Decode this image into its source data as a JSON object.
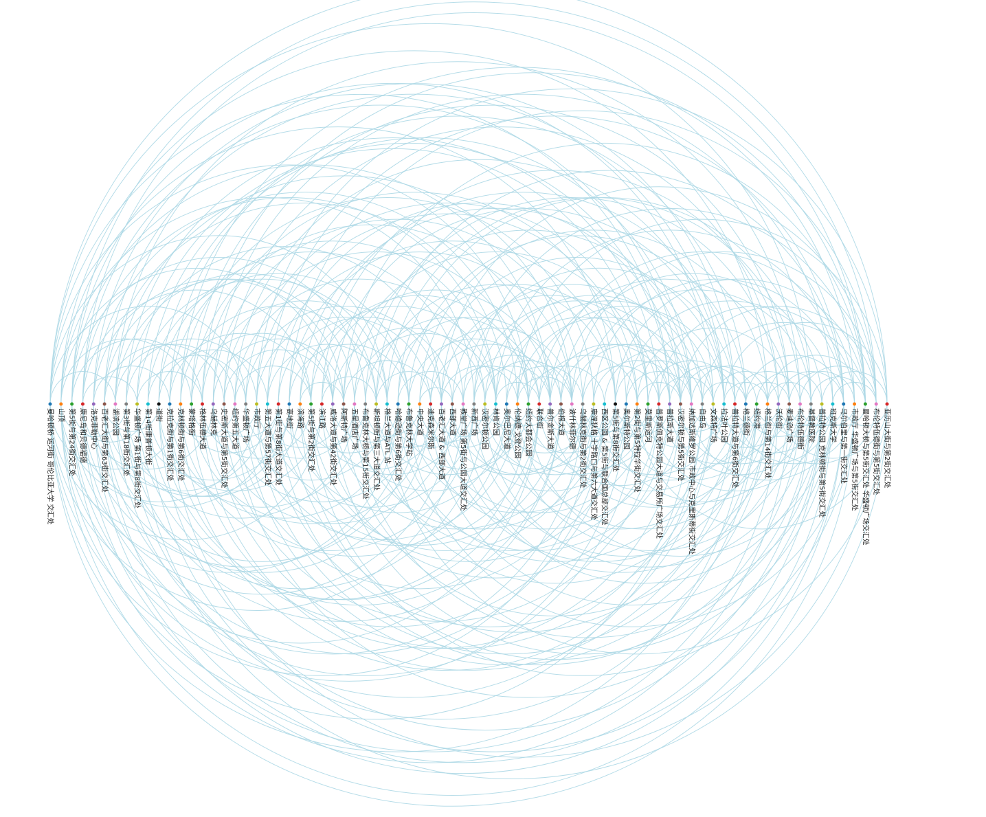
{
  "nodes": [
    {
      "name": "曼哈顿桥 运河街 哥伦比亚大学 交汇处",
      "color": "#1f77b4"
    },
    {
      "name": "山顶",
      "color": "#ff7f0e"
    },
    {
      "name": "第5街与第24街交汇处",
      "color": "#2ca02c"
    },
    {
      "name": "康尼岛和贝德福德",
      "color": "#d62728"
    },
    {
      "name": "洛克菲勒中心",
      "color": "#9467bd"
    },
    {
      "name": "百老汇大街与第63街交汇处",
      "color": "#8c564b"
    },
    {
      "name": "湖滨公园",
      "color": "#e377c2"
    },
    {
      "name": "第3街与第18街交汇处",
      "color": "#7f7f7f"
    },
    {
      "name": "华盛顿广场 第1街与第8街交汇处",
      "color": "#bcbd22"
    },
    {
      "name": "第14街康普顿大街",
      "color": "#17becf"
    },
    {
      "name": "道街",
      "color": "#111111"
    },
    {
      "name": "克拉克街与第1街交汇处",
      "color": "#1f77b4"
    },
    {
      "name": "克林顿街与第6街交汇处",
      "color": "#ff7f0e"
    },
    {
      "name": "蒙塔格街",
      "color": "#2ca02c"
    },
    {
      "name": "格林伍德大道",
      "color": "#d62728"
    },
    {
      "name": "乌赫林克",
      "color": "#9467bd"
    },
    {
      "name": "史密斯大道与第5街交汇处",
      "color": "#8c564b"
    },
    {
      "name": "纽约第五大道",
      "color": "#e377c2"
    },
    {
      "name": "华盛顿广场",
      "color": "#7f7f7f"
    },
    {
      "name": "市政厅",
      "color": "#bcbd22"
    },
    {
      "name": "第五大道与第57街交汇处",
      "color": "#17becf"
    },
    {
      "name": "第1街与第8街大道交汇处",
      "color": "#d62728"
    },
    {
      "name": "高地街",
      "color": "#1f77b4"
    },
    {
      "name": "滨海路",
      "color": "#ff7f0e"
    },
    {
      "name": "第5街与第2街交汇处",
      "color": "#2ca02c"
    },
    {
      "name": "滨江路",
      "color": "#d62728"
    },
    {
      "name": "威洛大道与第42街交汇处",
      "color": "#9467bd"
    },
    {
      "name": "阿斯特广场",
      "color": "#8c564b"
    },
    {
      "name": "五星酒店广场",
      "color": "#e377c2"
    },
    {
      "name": "布鲁克林大桥与第15街交汇处",
      "color": "#7f7f7f"
    },
    {
      "name": "斯坦顿街与第三大道交汇处",
      "color": "#bcbd22"
    },
    {
      "name": "格兰大道与ATL 站",
      "color": "#17becf"
    },
    {
      "name": "哈德逊街与第6街交汇处",
      "color": "#1f77b4"
    },
    {
      "name": "布鲁克林大学站",
      "color": "#2ca02c"
    },
    {
      "name": "中央大道",
      "color": "#ff7f0e"
    },
    {
      "name": "迪克森米尔斯",
      "color": "#d62728"
    },
    {
      "name": "百老汇大道 & 西部大道",
      "color": "#9467bd"
    },
    {
      "name": "西部大道",
      "color": "#8c564b"
    },
    {
      "name": "教堂广场 第5街与公园大道交汇处",
      "color": "#e377c2"
    },
    {
      "name": "新西广场",
      "color": "#7f7f7f"
    },
    {
      "name": "汉密尔顿公园",
      "color": "#bcbd22"
    },
    {
      "name": "林肯公园",
      "color": "#17becf"
    },
    {
      "name": "奥尔巴尼大道",
      "color": "#1f77b4"
    },
    {
      "name": "伦纳德·戈登公园",
      "color": "#ff7f0e"
    },
    {
      "name": "纽约大都会公园",
      "color": "#2ca02c"
    },
    {
      "name": "联合街",
      "color": "#d62728"
    },
    {
      "name": "普尔金斯大道",
      "color": "#9467bd"
    },
    {
      "name": "伯根大道",
      "color": "#8c564b"
    },
    {
      "name": "波什林菲尔德",
      "color": "#e377c2"
    },
    {
      "name": "乌赫林克街与第2街交汇处",
      "color": "#7f7f7f"
    },
    {
      "name": "康涅狄格 十字路口与第六大道交汇处",
      "color": "#bcbd22"
    },
    {
      "name": "西区公园 & 第5街与联合国总部交汇处",
      "color": "#17becf"
    },
    {
      "name": "第5街与第8街交汇处",
      "color": "#111111"
    },
    {
      "name": "奥尔斯特公园",
      "color": "#1f77b4"
    },
    {
      "name": "第2街与第5特拉华街交汇处",
      "color": "#ff7f0e"
    },
    {
      "name": "莫里斯运河",
      "color": "#2ca02c"
    },
    {
      "name": "普罗斯佩克特公园大道与交易所广场交汇处",
      "color": "#d62728"
    },
    {
      "name": "普拉斯大道",
      "color": "#9467bd"
    },
    {
      "name": "汉密尔顿与第5街交汇处",
      "color": "#8c564b"
    },
    {
      "name": "纳加达斯维罗公园 市政中心与克里斯蒂街交汇处",
      "color": "#e377c2"
    },
    {
      "name": "自由岛",
      "color": "#7f7f7f"
    },
    {
      "name": "文森特广场",
      "color": "#bcbd22"
    },
    {
      "name": "拉法叶公园",
      "color": "#17becf"
    },
    {
      "name": "普拉特大道与第6街交汇处",
      "color": "#d62728"
    },
    {
      "name": "格兰德街",
      "color": "#1f77b4"
    },
    {
      "name": "纽约港",
      "color": "#2ca02c"
    },
    {
      "name": "格兰街与第14街交汇处",
      "color": "#ff7f0e"
    },
    {
      "name": "沃伦街",
      "color": "#9467bd"
    },
    {
      "name": "麦迪逊广场",
      "color": "#8c564b"
    },
    {
      "name": "布伦特伍德街",
      "color": "#e377c2"
    },
    {
      "name": "基督教医院",
      "color": "#7f7f7f"
    },
    {
      "name": "普拉特公园 克林顿街与第5街交汇处",
      "color": "#bcbd22"
    },
    {
      "name": "班克斯大学",
      "color": "#17becf"
    },
    {
      "name": "马尔伯里与第一街交汇处",
      "color": "#1f77b4"
    },
    {
      "name": "市政厅 华盛顿广场与第5街交汇处",
      "color": "#ff7f0e"
    },
    {
      "name": "曼哈顿大桥与第5街交汇处 华盛顿广场交汇处",
      "color": "#2ca02c"
    },
    {
      "name": "布伦特伍德街与第5街交汇处",
      "color": "#e377c2"
    },
    {
      "name": "亚历山大街与第2街交汇处",
      "color": "#d62728"
    }
  ],
  "links": [
    [
      0,
      77
    ],
    [
      0,
      74
    ],
    [
      0,
      70
    ],
    [
      0,
      64
    ],
    [
      0,
      57
    ],
    [
      0,
      50
    ],
    [
      0,
      44
    ],
    [
      0,
      38
    ],
    [
      0,
      31
    ],
    [
      0,
      25
    ],
    [
      0,
      18
    ],
    [
      0,
      12
    ],
    [
      0,
      6
    ],
    [
      1,
      73
    ],
    [
      1,
      66
    ],
    [
      1,
      59
    ],
    [
      1,
      52
    ],
    [
      1,
      45
    ],
    [
      1,
      39
    ],
    [
      1,
      32
    ],
    [
      1,
      26
    ],
    [
      1,
      19
    ],
    [
      1,
      13
    ],
    [
      1,
      7
    ],
    [
      2,
      76
    ],
    [
      2,
      68
    ],
    [
      2,
      61
    ],
    [
      2,
      53
    ],
    [
      2,
      46
    ],
    [
      2,
      37
    ],
    [
      2,
      29
    ],
    [
      2,
      21
    ],
    [
      2,
      14
    ],
    [
      2,
      9
    ],
    [
      3,
      75
    ],
    [
      3,
      67
    ],
    [
      3,
      58
    ],
    [
      3,
      49
    ],
    [
      3,
      41
    ],
    [
      3,
      33
    ],
    [
      3,
      24
    ],
    [
      3,
      15
    ],
    [
      3,
      8
    ],
    [
      4,
      72
    ],
    [
      4,
      63
    ],
    [
      4,
      54
    ],
    [
      4,
      43
    ],
    [
      4,
      35
    ],
    [
      4,
      27
    ],
    [
      4,
      20
    ],
    [
      4,
      11
    ],
    [
      5,
      71
    ],
    [
      5,
      62
    ],
    [
      5,
      51
    ],
    [
      5,
      42
    ],
    [
      5,
      34
    ],
    [
      5,
      28
    ],
    [
      5,
      22
    ],
    [
      5,
      16
    ],
    [
      5,
      10
    ],
    [
      6,
      69
    ],
    [
      6,
      60
    ],
    [
      6,
      48
    ],
    [
      6,
      40
    ],
    [
      6,
      30
    ],
    [
      6,
      23
    ],
    [
      6,
      17
    ],
    [
      7,
      65
    ],
    [
      7,
      56
    ],
    [
      7,
      47
    ],
    [
      7,
      36
    ],
    [
      7,
      28
    ],
    [
      7,
      19
    ],
    [
      8,
      77
    ],
    [
      8,
      55
    ],
    [
      8,
      44
    ],
    [
      8,
      31
    ],
    [
      8,
      22
    ],
    [
      8,
      14
    ],
    [
      9,
      73
    ],
    [
      9,
      57
    ],
    [
      9,
      45
    ],
    [
      9,
      33
    ],
    [
      9,
      25
    ],
    [
      9,
      18
    ],
    [
      10,
      70
    ],
    [
      10,
      59
    ],
    [
      10,
      47
    ],
    [
      10,
      38
    ],
    [
      10,
      29
    ],
    [
      10,
      20
    ],
    [
      11,
      76
    ],
    [
      11,
      64
    ],
    [
      11,
      52
    ],
    [
      11,
      41
    ],
    [
      11,
      32
    ],
    [
      11,
      24
    ],
    [
      11,
      17
    ],
    [
      12,
      74
    ],
    [
      12,
      61
    ],
    [
      12,
      50
    ],
    [
      12,
      39
    ],
    [
      12,
      30
    ],
    [
      12,
      21
    ],
    [
      13,
      68
    ],
    [
      13,
      58
    ],
    [
      13,
      46
    ],
    [
      13,
      35
    ],
    [
      13,
      26
    ],
    [
      13,
      19
    ],
    [
      14,
      75
    ],
    [
      14,
      63
    ],
    [
      14,
      53
    ],
    [
      14,
      42
    ],
    [
      14,
      33
    ],
    [
      14,
      24
    ],
    [
      15,
      72
    ],
    [
      15,
      60
    ],
    [
      15,
      49
    ],
    [
      15,
      37
    ],
    [
      15,
      27
    ],
    [
      15,
      21
    ],
    [
      16,
      67
    ],
    [
      16,
      56
    ],
    [
      16,
      44
    ],
    [
      16,
      34
    ],
    [
      16,
      26
    ],
    [
      17,
      71
    ],
    [
      17,
      62
    ],
    [
      17,
      51
    ],
    [
      17,
      40
    ],
    [
      17,
      31
    ],
    [
      17,
      24
    ],
    [
      18,
      66
    ],
    [
      18,
      55
    ],
    [
      18,
      43
    ],
    [
      18,
      36
    ],
    [
      18,
      28
    ],
    [
      19,
      77
    ],
    [
      19,
      65
    ],
    [
      19,
      54
    ],
    [
      19,
      45
    ],
    [
      19,
      35
    ],
    [
      19,
      27
    ],
    [
      20,
      73
    ],
    [
      20,
      61
    ],
    [
      20,
      48
    ],
    [
      20,
      39
    ],
    [
      20,
      31
    ],
    [
      21,
      69
    ],
    [
      21,
      58
    ],
    [
      21,
      47
    ],
    [
      21,
      37
    ],
    [
      21,
      29
    ],
    [
      22,
      76
    ],
    [
      22,
      64
    ],
    [
      22,
      52
    ],
    [
      22,
      42
    ],
    [
      22,
      33
    ],
    [
      23,
      70
    ],
    [
      23,
      59
    ],
    [
      23,
      50
    ],
    [
      23,
      41
    ],
    [
      23,
      32
    ],
    [
      23,
      27
    ],
    [
      24,
      74
    ],
    [
      24,
      63
    ],
    [
      24,
      53
    ],
    [
      24,
      44
    ],
    [
      24,
      36
    ],
    [
      25,
      68
    ],
    [
      25,
      57
    ],
    [
      25,
      46
    ],
    [
      25,
      38
    ],
    [
      25,
      30
    ],
    [
      26,
      72
    ],
    [
      26,
      62
    ],
    [
      26,
      49
    ],
    [
      26,
      40
    ],
    [
      26,
      33
    ],
    [
      27,
      75
    ],
    [
      27,
      66
    ],
    [
      27,
      55
    ],
    [
      27,
      43
    ],
    [
      27,
      35
    ],
    [
      28,
      71
    ],
    [
      28,
      60
    ],
    [
      28,
      51
    ],
    [
      28,
      41
    ],
    [
      28,
      34
    ],
    [
      29,
      67
    ],
    [
      29,
      56
    ],
    [
      29,
      45
    ],
    [
      29,
      37
    ],
    [
      30,
      73
    ],
    [
      30,
      63
    ],
    [
      30,
      52
    ],
    [
      30,
      43
    ],
    [
      30,
      36
    ],
    [
      31,
      77
    ],
    [
      31,
      69
    ],
    [
      31,
      58
    ],
    [
      31,
      47
    ],
    [
      31,
      39
    ],
    [
      32,
      70
    ],
    [
      32,
      61
    ],
    [
      32,
      54
    ],
    [
      32,
      44
    ],
    [
      32,
      38
    ],
    [
      33,
      74
    ],
    [
      33,
      64
    ],
    [
      33,
      53
    ],
    [
      33,
      45
    ],
    [
      33,
      40
    ],
    [
      34,
      66
    ],
    [
      34,
      57
    ],
    [
      34,
      48
    ],
    [
      34,
      42
    ],
    [
      34,
      37
    ],
    [
      35,
      72
    ],
    [
      35,
      62
    ],
    [
      35,
      55
    ],
    [
      35,
      46
    ],
    [
      35,
      41
    ],
    [
      36,
      76
    ],
    [
      36,
      65
    ],
    [
      36,
      56
    ],
    [
      36,
      49
    ],
    [
      36,
      43
    ],
    [
      37,
      68
    ],
    [
      37,
      59
    ],
    [
      37,
      50
    ],
    [
      37,
      44
    ],
    [
      38,
      71
    ],
    [
      38,
      63
    ],
    [
      38,
      54
    ],
    [
      38,
      47
    ],
    [
      38,
      41
    ],
    [
      39,
      75
    ],
    [
      39,
      67
    ],
    [
      39,
      58
    ],
    [
      39,
      51
    ],
    [
      39,
      46
    ],
    [
      40,
      70
    ],
    [
      40,
      60
    ],
    [
      40,
      53
    ],
    [
      40,
      48
    ],
    [
      40,
      44
    ],
    [
      41,
      73
    ],
    [
      41,
      64
    ],
    [
      41,
      57
    ],
    [
      41,
      50
    ],
    [
      41,
      45
    ],
    [
      42,
      69
    ],
    [
      42,
      61
    ],
    [
      42,
      55
    ],
    [
      42,
      49
    ],
    [
      42,
      46
    ],
    [
      43,
      77
    ],
    [
      43,
      66
    ],
    [
      43,
      59
    ],
    [
      43,
      52
    ],
    [
      43,
      48
    ],
    [
      44,
      72
    ],
    [
      44,
      62
    ],
    [
      44,
      56
    ],
    [
      44,
      51
    ],
    [
      44,
      47
    ],
    [
      45,
      68
    ],
    [
      45,
      60
    ],
    [
      45,
      54
    ],
    [
      45,
      50
    ],
    [
      46,
      74
    ],
    [
      46,
      65
    ],
    [
      46,
      57
    ],
    [
      46,
      52
    ],
    [
      47,
      71
    ],
    [
      47,
      63
    ],
    [
      47,
      58
    ],
    [
      47,
      53
    ],
    [
      48,
      76
    ],
    [
      48,
      67
    ],
    [
      48,
      59
    ],
    [
      48,
      55
    ],
    [
      49,
      70
    ],
    [
      49,
      62
    ],
    [
      49,
      56
    ],
    [
      49,
      54
    ],
    [
      50,
      73
    ],
    [
      50,
      64
    ],
    [
      50,
      58
    ],
    [
      51,
      69
    ],
    [
      51,
      61
    ],
    [
      51,
      57
    ],
    [
      52,
      75
    ],
    [
      52,
      66
    ],
    [
      52,
      60
    ],
    [
      52,
      56
    ],
    [
      53,
      72
    ],
    [
      53,
      65
    ],
    [
      53,
      59
    ],
    [
      54,
      77
    ],
    [
      54,
      68
    ],
    [
      54,
      62
    ],
    [
      54,
      58
    ],
    [
      55,
      71
    ],
    [
      55,
      63
    ],
    [
      55,
      60
    ],
    [
      56,
      74
    ],
    [
      56,
      67
    ],
    [
      56,
      61
    ],
    [
      57,
      70
    ],
    [
      57,
      64
    ],
    [
      57,
      62
    ],
    [
      58,
      76
    ],
    [
      58,
      69
    ],
    [
      58,
      65
    ],
    [
      59,
      73
    ],
    [
      59,
      66
    ],
    [
      59,
      63
    ],
    [
      60,
      75
    ],
    [
      60,
      68
    ],
    [
      60,
      64
    ],
    [
      61,
      72
    ],
    [
      61,
      67
    ],
    [
      61,
      65
    ],
    [
      62,
      77
    ],
    [
      62,
      71
    ],
    [
      62,
      66
    ],
    [
      63,
      74
    ],
    [
      63,
      69
    ],
    [
      63,
      67
    ],
    [
      64,
      73
    ],
    [
      64,
      70
    ],
    [
      64,
      68
    ],
    [
      65,
      76
    ],
    [
      65,
      71
    ],
    [
      65,
      69
    ],
    [
      66,
      75
    ],
    [
      66,
      72
    ],
    [
      66,
      70
    ],
    [
      67,
      77
    ],
    [
      67,
      73
    ],
    [
      67,
      71
    ],
    [
      68,
      74
    ],
    [
      68,
      72
    ],
    [
      69,
      76
    ],
    [
      69,
      73
    ],
    [
      70,
      75
    ],
    [
      70,
      74
    ],
    [
      71,
      77
    ],
    [
      71,
      75
    ],
    [
      72,
      76
    ],
    [
      73,
      77
    ]
  ]
}
